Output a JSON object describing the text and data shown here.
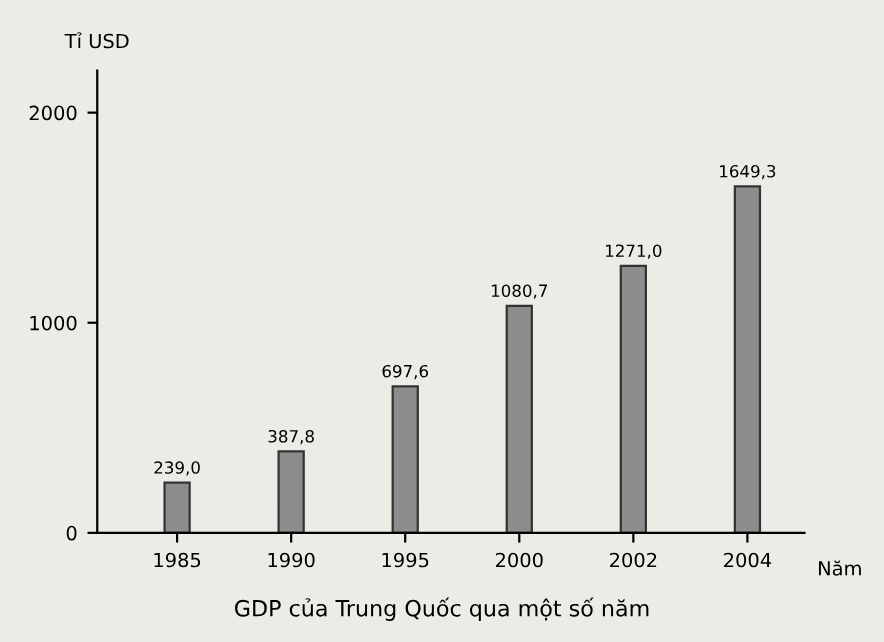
{
  "chart_data": {
    "type": "bar",
    "title": "GDP của Trung Quốc qua một số năm",
    "ylabel": "Tỉ USD",
    "xlabel": "Năm",
    "categories": [
      "1985",
      "1990",
      "1995",
      "2000",
      "2002",
      "2004"
    ],
    "values": [
      239.0,
      387.8,
      697.6,
      1080.7,
      1271.0,
      1649.3
    ],
    "value_labels": [
      "239,0",
      "387,8",
      "697,6",
      "1080,7",
      "1271,0",
      "1649,3"
    ],
    "color": "#8c8c8c",
    "ylim": [
      0,
      2200
    ],
    "yticks": [
      0,
      1000,
      2000
    ],
    "grid": false,
    "legend": false
  }
}
